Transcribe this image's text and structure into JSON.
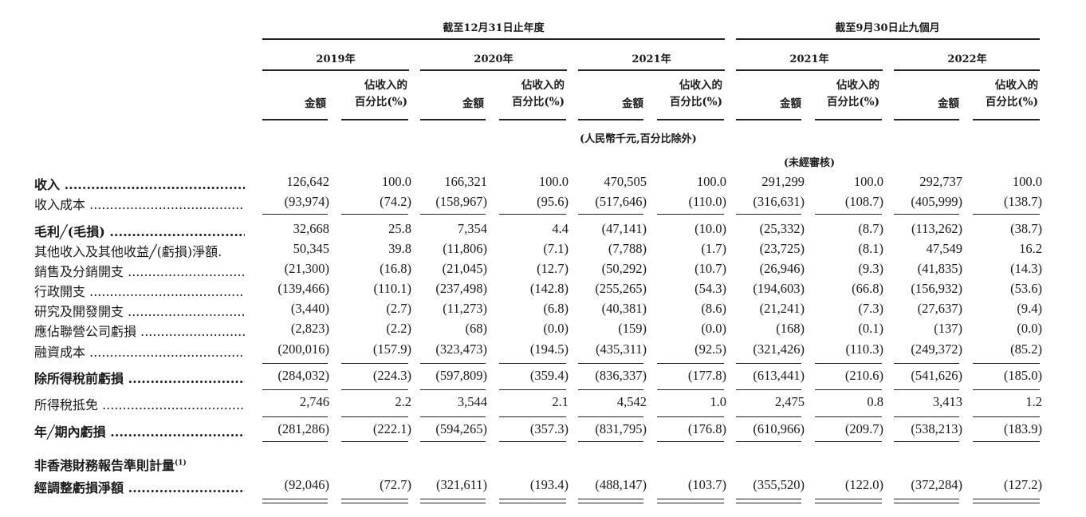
{
  "header": {
    "group1": "截至12月31日止年度",
    "group2": "截至9月30日止九個月",
    "years": [
      "2019年",
      "2020年",
      "2021年",
      "2021年",
      "2022年"
    ],
    "amount_label": "金額",
    "pct_label_line1": "佔收入的",
    "pct_label_line2": "百分比(%)",
    "unit_note": "(人民幣千元,百分比除外)",
    "unaudited_note": "(未經審核)"
  },
  "footnote_marker": "(1)",
  "rows": [
    {
      "label": "收入",
      "bold": true,
      "values": [
        "126,642",
        "100.0",
        "166,321",
        "100.0",
        "470,505",
        "100.0",
        "291,299",
        "100.0",
        "292,737",
        "100.0"
      ]
    },
    {
      "label": "收入成本",
      "bold": false,
      "values": [
        "(93,974)",
        "(74.2)",
        "(158,967)",
        "(95.6)",
        "(517,646)",
        "(110.0)",
        "(316,631)",
        "(108.7)",
        "(405,999)",
        "(138.7)"
      ]
    },
    {
      "label": "毛利╱(毛損)",
      "bold": true,
      "values": [
        "32,668",
        "25.8",
        "7,354",
        "4.4",
        "(47,141)",
        "(10.0)",
        "(25,332)",
        "(8.7)",
        "(113,262)",
        "(38.7)"
      ]
    },
    {
      "label": "其他收入及其他收益╱(虧損)淨額.",
      "bold": false,
      "values": [
        "50,345",
        "39.8",
        "(11,806)",
        "(7.1)",
        "(7,788)",
        "(1.7)",
        "(23,725)",
        "(8.1)",
        "47,549",
        "16.2"
      ]
    },
    {
      "label": "銷售及分銷開支",
      "bold": false,
      "values": [
        "(21,300)",
        "(16.8)",
        "(21,045)",
        "(12.7)",
        "(50,292)",
        "(10.7)",
        "(26,946)",
        "(9.3)",
        "(41,835)",
        "(14.3)"
      ]
    },
    {
      "label": "行政開支",
      "bold": false,
      "values": [
        "(139,466)",
        "(110.1)",
        "(237,498)",
        "(142.8)",
        "(255,265)",
        "(54.3)",
        "(194,603)",
        "(66.8)",
        "(156,932)",
        "(53.6)"
      ]
    },
    {
      "label": "研究及開發開支",
      "bold": false,
      "values": [
        "(3,440)",
        "(2.7)",
        "(11,273)",
        "(6.8)",
        "(40,381)",
        "(8.6)",
        "(21,241)",
        "(7.3)",
        "(27,637)",
        "(9.4)"
      ]
    },
    {
      "label": "應佔聯營公司虧損",
      "bold": false,
      "values": [
        "(2,823)",
        "(2.2)",
        "(68)",
        "(0.0)",
        "(159)",
        "(0.0)",
        "(168)",
        "(0.1)",
        "(137)",
        "(0.0)"
      ]
    },
    {
      "label": "融資成本",
      "bold": false,
      "values": [
        "(200,016)",
        "(157.9)",
        "(323,473)",
        "(194.5)",
        "(435,311)",
        "(92.5)",
        "(321,426)",
        "(110.3)",
        "(249,372)",
        "(85.2)"
      ]
    },
    {
      "label": "除所得稅前虧損",
      "bold": true,
      "values": [
        "(284,032)",
        "(224.3)",
        "(597,809)",
        "(359.4)",
        "(836,337)",
        "(177.8)",
        "(613,441)",
        "(210.6)",
        "(541,626)",
        "(185.0)"
      ]
    },
    {
      "label": "所得稅抵免",
      "bold": false,
      "values": [
        "2,746",
        "2.2",
        "3,544",
        "2.1",
        "4,542",
        "1.0",
        "2,475",
        "0.8",
        "3,413",
        "1.2"
      ]
    },
    {
      "label": "年╱期內虧損",
      "bold": true,
      "values": [
        "(281,286)",
        "(222.1)",
        "(594,265)",
        "(357.3)",
        "(831,795)",
        "(176.8)",
        "(610,966)",
        "(209.7)",
        "(538,213)",
        "(183.9)"
      ]
    },
    {
      "label": "非香港財務報告準則計量",
      "bold": true,
      "values": []
    },
    {
      "label": "經調整虧損淨額",
      "bold": true,
      "values": [
        "(92,046)",
        "(72.7)",
        "(321,611)",
        "(193.4)",
        "(488,147)",
        "(103.7)",
        "(355,520)",
        "(122.0)",
        "(372,284)",
        "(127.2)"
      ]
    }
  ]
}
